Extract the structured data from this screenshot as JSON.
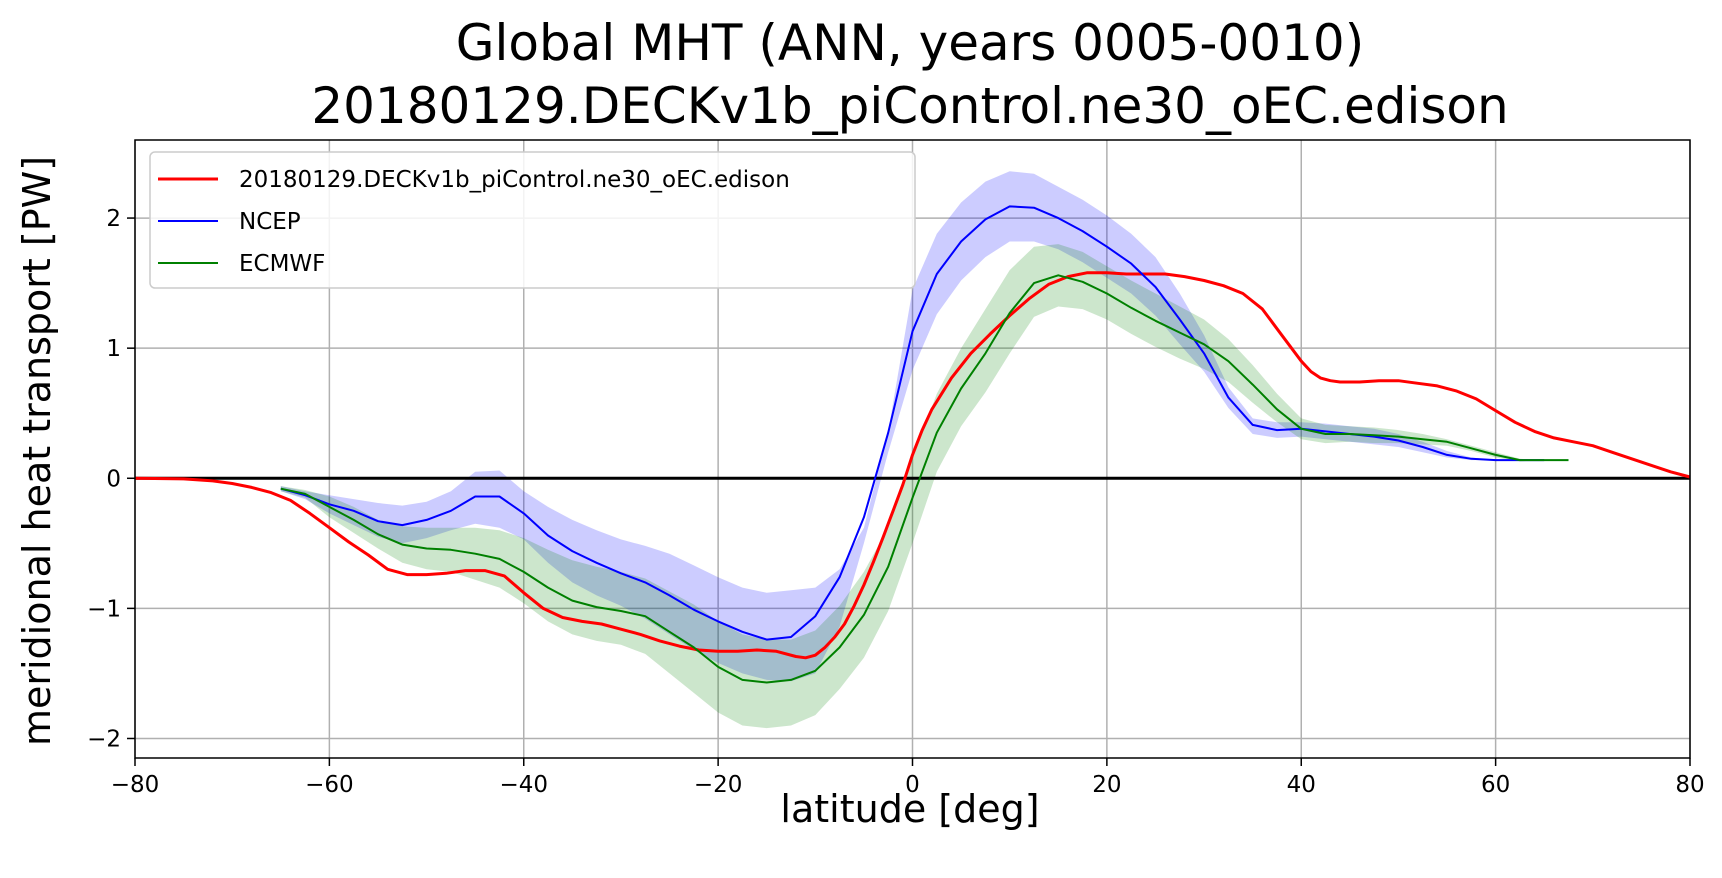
{
  "chart_data": {
    "type": "line",
    "title_line1": "Global MHT (ANN, years 0005-0010)",
    "title_line2": "20180129.DECKv1b_piControl.ne30_oEC.edison",
    "xlabel": "latitude [deg]",
    "ylabel": "meridional heat transport [PW]",
    "xlim": [
      -80,
      80
    ],
    "ylim": [
      -2.15,
      2.6
    ],
    "xticks": [
      -80,
      -60,
      -40,
      -20,
      0,
      20,
      40,
      60,
      80
    ],
    "xtick_labels": [
      "−80",
      "−60",
      "−40",
      "−20",
      "0",
      "20",
      "40",
      "60",
      "80"
    ],
    "yticks": [
      -2,
      -1,
      0,
      1,
      2
    ],
    "ytick_labels": [
      "−2",
      "−1",
      "0",
      "1",
      "2"
    ],
    "grid": true,
    "legend_position": "top-left",
    "zero_line": true,
    "series": [
      {
        "name": "20180129.DECKv1b_piControl.ne30_oEC.edison",
        "color": "#ff0000",
        "x": [
          -80,
          -75,
          -72,
          -70,
          -68,
          -66,
          -64,
          -62,
          -60,
          -58,
          -56,
          -54,
          -52,
          -50,
          -48,
          -46,
          -44,
          -42,
          -40,
          -38,
          -36,
          -34,
          -32,
          -30,
          -28,
          -26,
          -24,
          -22,
          -20,
          -18,
          -16,
          -14,
          -12,
          -11,
          -10,
          -9,
          -8,
          -7,
          -6,
          -5,
          -4,
          -3,
          -2,
          -1,
          0,
          1,
          2,
          4,
          6,
          8,
          10,
          12,
          14,
          16,
          18,
          20,
          22,
          24,
          26,
          28,
          30,
          32,
          34,
          36,
          38,
          40,
          41,
          42,
          43,
          44,
          46,
          48,
          50,
          52,
          54,
          56,
          58,
          60,
          62,
          64,
          66,
          68,
          70,
          72,
          74,
          76,
          78,
          80
        ],
        "y": [
          0.0,
          -0.005,
          -0.02,
          -0.04,
          -0.07,
          -0.11,
          -0.17,
          -0.27,
          -0.38,
          -0.49,
          -0.59,
          -0.7,
          -0.74,
          -0.74,
          -0.73,
          -0.71,
          -0.71,
          -0.75,
          -0.88,
          -1.0,
          -1.07,
          -1.1,
          -1.12,
          -1.16,
          -1.2,
          -1.25,
          -1.29,
          -1.32,
          -1.33,
          -1.33,
          -1.32,
          -1.33,
          -1.37,
          -1.38,
          -1.36,
          -1.3,
          -1.22,
          -1.12,
          -0.98,
          -0.82,
          -0.64,
          -0.45,
          -0.25,
          -0.05,
          0.18,
          0.37,
          0.53,
          0.77,
          0.96,
          1.11,
          1.25,
          1.38,
          1.49,
          1.55,
          1.58,
          1.58,
          1.57,
          1.57,
          1.57,
          1.55,
          1.52,
          1.48,
          1.42,
          1.3,
          1.1,
          0.9,
          0.82,
          0.77,
          0.75,
          0.74,
          0.74,
          0.75,
          0.75,
          0.73,
          0.71,
          0.67,
          0.61,
          0.52,
          0.43,
          0.36,
          0.31,
          0.28,
          0.25,
          0.2,
          0.15,
          0.1,
          0.05,
          0.01
        ],
        "line_width": 3
      },
      {
        "name": "NCEP",
        "color": "#0000ff",
        "x": [
          -65,
          -62.5,
          -60,
          -57.5,
          -55,
          -52.5,
          -50,
          -47.5,
          -45,
          -42.5,
          -40,
          -37.5,
          -35,
          -32.5,
          -30,
          -27.5,
          -25,
          -22.5,
          -20,
          -17.5,
          -15,
          -12.5,
          -10,
          -7.5,
          -5,
          -2.5,
          0,
          2.5,
          5,
          7.5,
          10,
          12.5,
          15,
          17.5,
          20,
          22.5,
          25,
          27.5,
          30,
          32.5,
          35,
          37.5,
          40,
          42.5,
          45,
          47.5,
          50,
          52.5,
          55,
          57.5,
          60,
          62.5,
          65
        ],
        "y": [
          -0.08,
          -0.13,
          -0.2,
          -0.25,
          -0.33,
          -0.36,
          -0.32,
          -0.25,
          -0.14,
          -0.14,
          -0.27,
          -0.44,
          -0.56,
          -0.65,
          -0.73,
          -0.8,
          -0.9,
          -1.01,
          -1.1,
          -1.18,
          -1.24,
          -1.22,
          -1.06,
          -0.76,
          -0.3,
          0.35,
          1.13,
          1.57,
          1.82,
          1.99,
          2.09,
          2.08,
          2.0,
          1.9,
          1.78,
          1.65,
          1.47,
          1.22,
          0.96,
          0.62,
          0.41,
          0.37,
          0.38,
          0.36,
          0.34,
          0.32,
          0.29,
          0.24,
          0.18,
          0.15,
          0.14,
          0.14,
          0.14
        ],
        "band_upper": [
          -0.06,
          -0.1,
          -0.13,
          -0.16,
          -0.19,
          -0.21,
          -0.18,
          -0.1,
          0.05,
          0.06,
          -0.1,
          -0.22,
          -0.32,
          -0.4,
          -0.47,
          -0.52,
          -0.58,
          -0.67,
          -0.76,
          -0.84,
          -0.88,
          -0.86,
          -0.84,
          -0.7,
          -0.38,
          0.36,
          1.45,
          1.88,
          2.12,
          2.28,
          2.36,
          2.34,
          2.24,
          2.14,
          2.02,
          1.88,
          1.7,
          1.42,
          1.1,
          0.7,
          0.46,
          0.43,
          0.43,
          0.42,
          0.4,
          0.38,
          0.34,
          0.28,
          0.21,
          0.16,
          0.14,
          0.14,
          0.14
        ],
        "band_lower": [
          -0.1,
          -0.16,
          -0.27,
          -0.36,
          -0.45,
          -0.5,
          -0.46,
          -0.4,
          -0.35,
          -0.38,
          -0.47,
          -0.65,
          -0.8,
          -0.9,
          -0.98,
          -1.08,
          -1.2,
          -1.32,
          -1.42,
          -1.5,
          -1.55,
          -1.56,
          -1.5,
          -1.14,
          -0.5,
          0.2,
          0.83,
          1.26,
          1.52,
          1.7,
          1.82,
          1.82,
          1.76,
          1.66,
          1.54,
          1.42,
          1.25,
          1.03,
          0.82,
          0.54,
          0.34,
          0.31,
          0.32,
          0.3,
          0.28,
          0.26,
          0.24,
          0.2,
          0.16,
          0.14,
          0.14,
          0.14,
          0.14
        ],
        "line_width": 2
      },
      {
        "name": "ECMWF",
        "color": "#008000",
        "x": [
          -65,
          -62.5,
          -60,
          -57.5,
          -55,
          -52.5,
          -50,
          -47.5,
          -45,
          -42.5,
          -40,
          -37.5,
          -35,
          -32.5,
          -30,
          -27.5,
          -25,
          -22.5,
          -20,
          -17.5,
          -15,
          -12.5,
          -10,
          -7.5,
          -5,
          -2.5,
          0,
          2.5,
          5,
          7.5,
          10,
          12.5,
          15,
          17.5,
          20,
          22.5,
          25,
          27.5,
          30,
          32.5,
          35,
          37.5,
          40,
          42.5,
          45,
          47.5,
          50,
          52.5,
          55,
          57.5,
          60,
          62.5,
          65,
          67.5
        ],
        "y": [
          -0.08,
          -0.12,
          -0.22,
          -0.32,
          -0.43,
          -0.51,
          -0.54,
          -0.55,
          -0.58,
          -0.62,
          -0.72,
          -0.84,
          -0.94,
          -0.99,
          -1.02,
          -1.06,
          -1.18,
          -1.3,
          -1.45,
          -1.55,
          -1.57,
          -1.55,
          -1.48,
          -1.3,
          -1.05,
          -0.68,
          -0.15,
          0.35,
          0.69,
          0.96,
          1.27,
          1.5,
          1.56,
          1.51,
          1.42,
          1.31,
          1.21,
          1.12,
          1.03,
          0.9,
          0.72,
          0.53,
          0.38,
          0.34,
          0.34,
          0.33,
          0.32,
          0.3,
          0.28,
          0.23,
          0.18,
          0.14,
          0.14,
          0.14
        ],
        "band_upper": [
          -0.06,
          -0.09,
          -0.14,
          -0.22,
          -0.32,
          -0.37,
          -0.38,
          -0.38,
          -0.38,
          -0.4,
          -0.46,
          -0.55,
          -0.63,
          -0.68,
          -0.72,
          -0.77,
          -0.87,
          -0.97,
          -1.1,
          -1.2,
          -1.24,
          -1.24,
          -1.17,
          -0.98,
          -0.72,
          -0.38,
          0.15,
          0.65,
          1.0,
          1.3,
          1.6,
          1.78,
          1.8,
          1.74,
          1.63,
          1.52,
          1.42,
          1.32,
          1.22,
          1.07,
          0.87,
          0.65,
          0.46,
          0.41,
          0.4,
          0.39,
          0.37,
          0.34,
          0.3,
          0.25,
          0.2,
          0.15,
          0.14,
          0.14
        ],
        "band_lower": [
          -0.1,
          -0.15,
          -0.3,
          -0.42,
          -0.54,
          -0.65,
          -0.7,
          -0.72,
          -0.78,
          -0.84,
          -0.96,
          -1.1,
          -1.2,
          -1.25,
          -1.28,
          -1.35,
          -1.5,
          -1.65,
          -1.8,
          -1.9,
          -1.92,
          -1.9,
          -1.82,
          -1.62,
          -1.38,
          -1.02,
          -0.5,
          0.05,
          0.4,
          0.66,
          0.96,
          1.24,
          1.32,
          1.3,
          1.22,
          1.11,
          1.01,
          0.92,
          0.84,
          0.74,
          0.58,
          0.43,
          0.3,
          0.27,
          0.28,
          0.27,
          0.27,
          0.26,
          0.25,
          0.21,
          0.16,
          0.13,
          0.14,
          0.14
        ],
        "line_width": 2
      }
    ]
  },
  "colors": {
    "ncep_band": "#0000ff",
    "ecmwf_band": "#008000",
    "grid": "#b0b0b0",
    "zero_line": "#000000"
  }
}
